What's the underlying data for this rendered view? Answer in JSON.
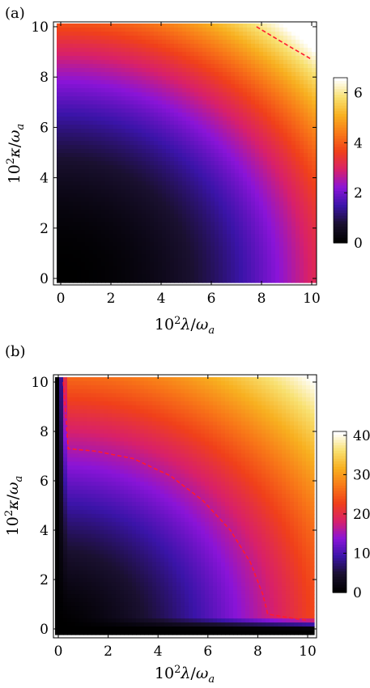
{
  "colors": {
    "colormap": [
      "#000000",
      "#1a1030",
      "#3a14a8",
      "#8a14d8",
      "#d8206a",
      "#f0401a",
      "#f87818",
      "#f8b020",
      "#f8e070",
      "#ffffff"
    ],
    "contour": "#ff1a2e"
  },
  "chart_data": [
    {
      "panel_label": "(a)",
      "type": "heatmap",
      "xlabel": "10²λ/ωₐ",
      "ylabel": "10²κ/ωₐ",
      "xlim": [
        0,
        10
      ],
      "ylim": [
        0,
        10
      ],
      "x_ticks": [
        "0",
        "2",
        "4",
        "6",
        "8",
        "10"
      ],
      "y_ticks": [
        "0",
        "2",
        "4",
        "6",
        "8",
        "10"
      ],
      "colorbar": {
        "range": [
          0,
          6.6
        ],
        "ticks": [
          "0",
          "2",
          "4",
          "6"
        ],
        "tick_values": [
          0,
          2,
          4,
          6
        ]
      },
      "contour": {
        "style": "dashed",
        "points": [
          [
            7.8,
            10
          ],
          [
            8.8,
            9.4
          ],
          [
            10,
            8.7
          ]
        ]
      }
    },
    {
      "panel_label": "(b)",
      "type": "heatmap",
      "xlabel": "10²λ/ωₐ",
      "ylabel": "10²κ/ωₐ",
      "xlim": [
        0,
        10
      ],
      "ylim": [
        0,
        10
      ],
      "x_ticks": [
        "0",
        "2",
        "4",
        "6",
        "8",
        "10"
      ],
      "y_ticks": [
        "0",
        "2",
        "4",
        "6",
        "8",
        "10"
      ],
      "colorbar": {
        "range": [
          0,
          41
        ],
        "ticks": [
          "0",
          "10",
          "20",
          "30",
          "40"
        ],
        "tick_values": [
          0,
          10,
          20,
          30,
          40
        ]
      },
      "contour": {
        "style": "dashed",
        "points": [
          [
            0.2,
            10
          ],
          [
            0.4,
            7.3
          ],
          [
            1.5,
            7.2
          ],
          [
            3,
            6.9
          ],
          [
            4.5,
            6.2
          ],
          [
            5.8,
            5.2
          ],
          [
            6.9,
            4.0
          ],
          [
            7.7,
            2.7
          ],
          [
            8.2,
            1.4
          ],
          [
            8.4,
            0.6
          ],
          [
            9.0,
            0.5
          ],
          [
            9.6,
            0.4
          ],
          [
            10,
            0.35
          ]
        ]
      }
    }
  ]
}
